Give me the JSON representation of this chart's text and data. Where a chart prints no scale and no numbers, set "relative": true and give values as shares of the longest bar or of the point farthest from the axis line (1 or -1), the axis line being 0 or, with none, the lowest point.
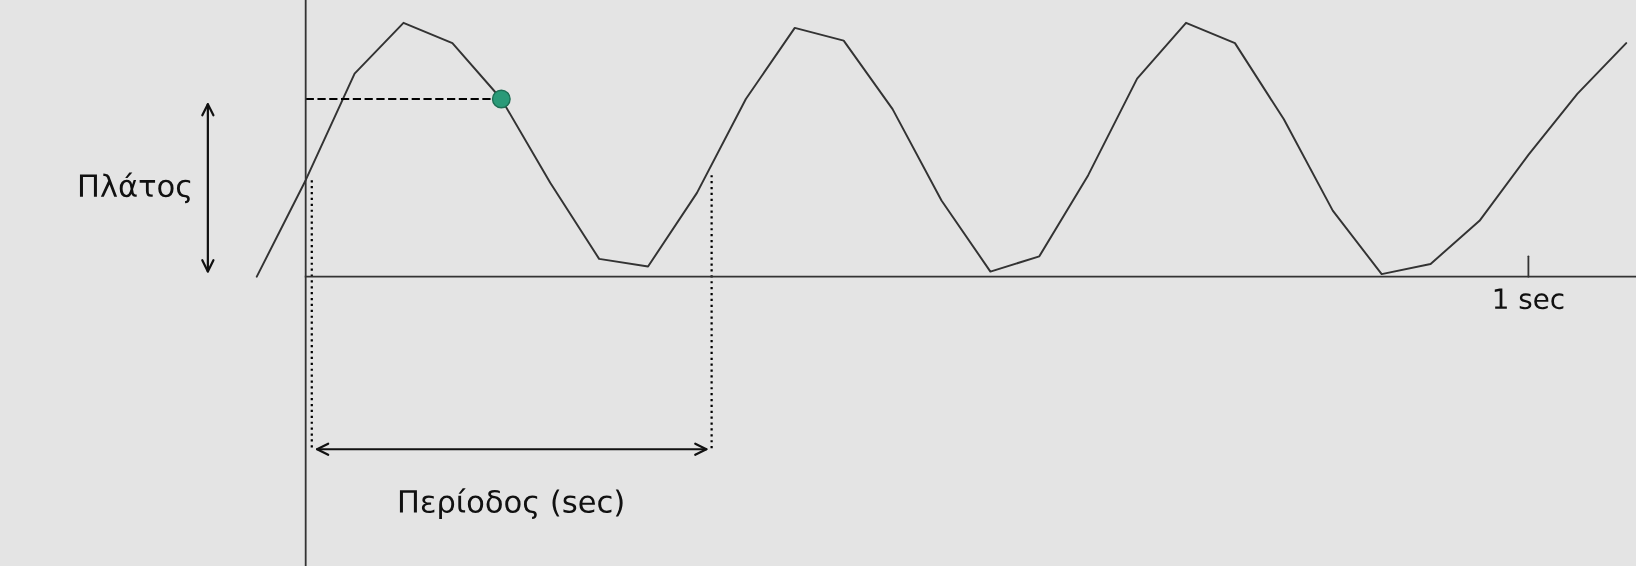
{
  "chart_data": {
    "type": "line",
    "relative": true,
    "categories": [
      null,
      null,
      null,
      null,
      null,
      null,
      null,
      null,
      null,
      null,
      null,
      null,
      null,
      null,
      null,
      null,
      null,
      null,
      null,
      null,
      null,
      null,
      null,
      null,
      null,
      null,
      null,
      null,
      null
    ],
    "series": [
      {
        "color": "#333333",
        "line_style": "solid",
        "values": [
          0.0,
          0.38,
          0.8,
          1,
          0.92,
          0.7,
          0.37,
          0.07,
          0.04,
          0.33,
          0.7,
          0.98,
          0.93,
          0.66,
          0.3,
          0.02,
          0.08,
          0.4,
          0.78,
          1,
          0.92,
          0.62,
          0.26,
          0.01,
          0.05,
          0.22,
          0.48,
          0.72,
          0.92
        ]
      }
    ],
    "annotations": [
      "Πλάτος",
      "Περίοδος (sec)",
      "1 sec"
    ]
  }
}
